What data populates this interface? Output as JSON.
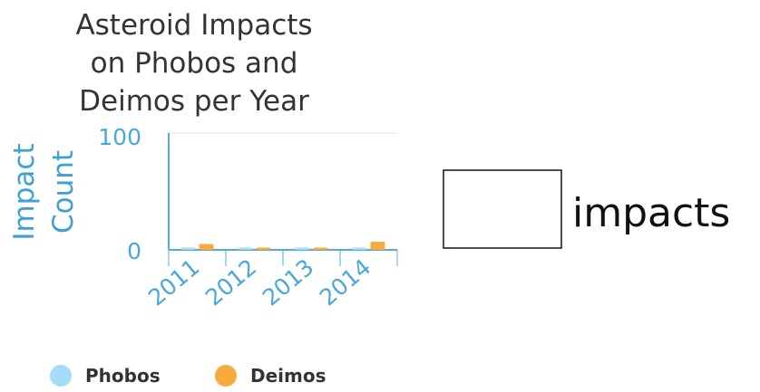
{
  "chart_data": {
    "type": "bar",
    "title_lines": [
      "Asteroid Impacts",
      "on Phobos and",
      "Deimos per Year"
    ],
    "ylabel_lines": [
      "Impact",
      "Count"
    ],
    "xlabel": "",
    "categories": [
      "2011",
      "2012",
      "2013",
      "2014"
    ],
    "series": [
      {
        "name": "Phobos",
        "values": [
          0,
          1,
          0,
          1
        ]
      },
      {
        "name": "Deimos",
        "values": [
          5,
          0,
          0,
          7
        ]
      }
    ],
    "ylim": [
      0,
      100
    ],
    "yticks": [
      "0",
      "100"
    ],
    "grid": true,
    "legend_position": "bottom-left"
  },
  "colors": {
    "phobos": "#a4dcfa",
    "deimos": "#f7ab3c",
    "axis": "#5aaad6"
  },
  "side_input": {
    "value": "",
    "label": "impacts"
  }
}
